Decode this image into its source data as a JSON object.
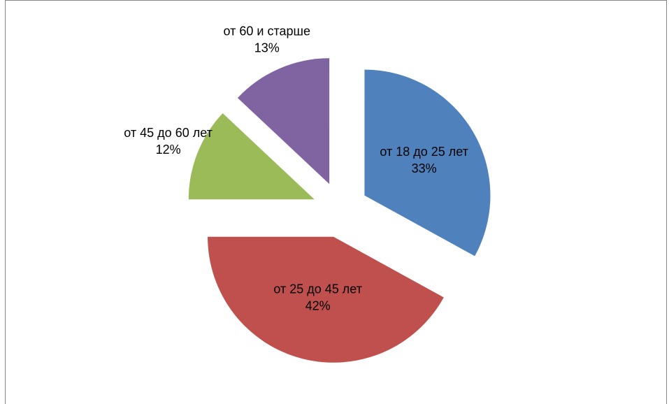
{
  "chart_data": {
    "type": "pie",
    "categories": [
      "от 18 до 25 лет",
      "от 25 до 45 лет",
      "от 45 до 60 лет",
      "от 60 и старше"
    ],
    "values": [
      33,
      42,
      12,
      13
    ],
    "value_labels": [
      "33%",
      "42%",
      "12%",
      "13%"
    ],
    "colors": [
      "#4f81bd",
      "#c0504d",
      "#9bbb59",
      "#8064a2"
    ],
    "exploded": true
  }
}
